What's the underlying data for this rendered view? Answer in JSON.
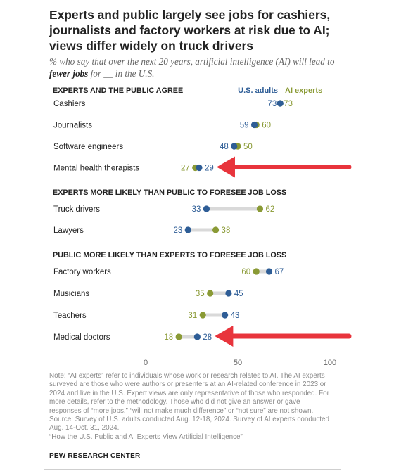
{
  "title": "Experts and public largely see jobs for cashiers, journalists and factory workers at risk due to AI; views differ widely on truck drivers",
  "subtitle": {
    "part1": "% who say that over the next 20 years, artificial intelligence (AI) will lead to ",
    "bold": "fewer jobs",
    "part2": " for __ in the U.S."
  },
  "colors": {
    "us_adults": "#2e5d96",
    "ai_experts": "#8a9a35",
    "connector": "#d9d9d9",
    "arrow": "#e8343c"
  },
  "chart_data": {
    "type": "dot",
    "xlim": [
      0,
      100
    ],
    "xticks": [
      "0",
      "50",
      "100"
    ],
    "legend": {
      "us_adults": "U.S. adults",
      "ai_experts": "AI experts",
      "placement": "top-right"
    },
    "series": [
      {
        "name": "U.S. adults",
        "key": "us_adults"
      },
      {
        "name": "AI experts",
        "key": "ai_experts"
      }
    ],
    "groups": [
      {
        "heading": "EXPERTS AND THE PUBLIC AGREE",
        "rows": [
          {
            "label": "Cashiers",
            "us_adults": 73,
            "ai_experts": 73
          },
          {
            "label": "Journalists",
            "us_adults": 59,
            "ai_experts": 60
          },
          {
            "label": "Software engineers",
            "us_adults": 48,
            "ai_experts": 50
          },
          {
            "label": "Mental health therapists",
            "us_adults": 29,
            "ai_experts": 27,
            "arrow": true
          }
        ]
      },
      {
        "heading": "EXPERTS MORE LIKELY THAN PUBLIC TO FORESEE JOB LOSS",
        "rows": [
          {
            "label": "Truck drivers",
            "us_adults": 33,
            "ai_experts": 62
          },
          {
            "label": "Lawyers",
            "us_adults": 23,
            "ai_experts": 38
          }
        ]
      },
      {
        "heading": "PUBLIC MORE LIKELY THAN EXPERTS TO FORESEE JOB LOSS",
        "rows": [
          {
            "label": "Factory workers",
            "us_adults": 67,
            "ai_experts": 60
          },
          {
            "label": "Musicians",
            "us_adults": 45,
            "ai_experts": 35
          },
          {
            "label": "Teachers",
            "us_adults": 43,
            "ai_experts": 31
          },
          {
            "label": "Medical doctors",
            "us_adults": 28,
            "ai_experts": 18,
            "arrow": true
          }
        ]
      }
    ]
  },
  "note_lines": [
    "Note: “AI experts” refer to individuals whose work or research relates to AI. The AI experts",
    "surveyed are those who were authors or presenters at an AI-related conference in 2023 or",
    "2024 and live in the U.S. Expert views are only representative of those who responded. For",
    "more details, refer to the methodology. Those who did not give an answer or gave",
    "responses of “more jobs,” “will not make much difference” or “not sure” are not shown.",
    "Source: Survey of U.S. adults conducted Aug. 12-18, 2024. Survey of AI experts conducted",
    "Aug. 14-Oct. 31, 2024.",
    "“How the U.S. Public and AI Experts View Artificial Intelligence”"
  ],
  "brand": "PEW RESEARCH CENTER"
}
